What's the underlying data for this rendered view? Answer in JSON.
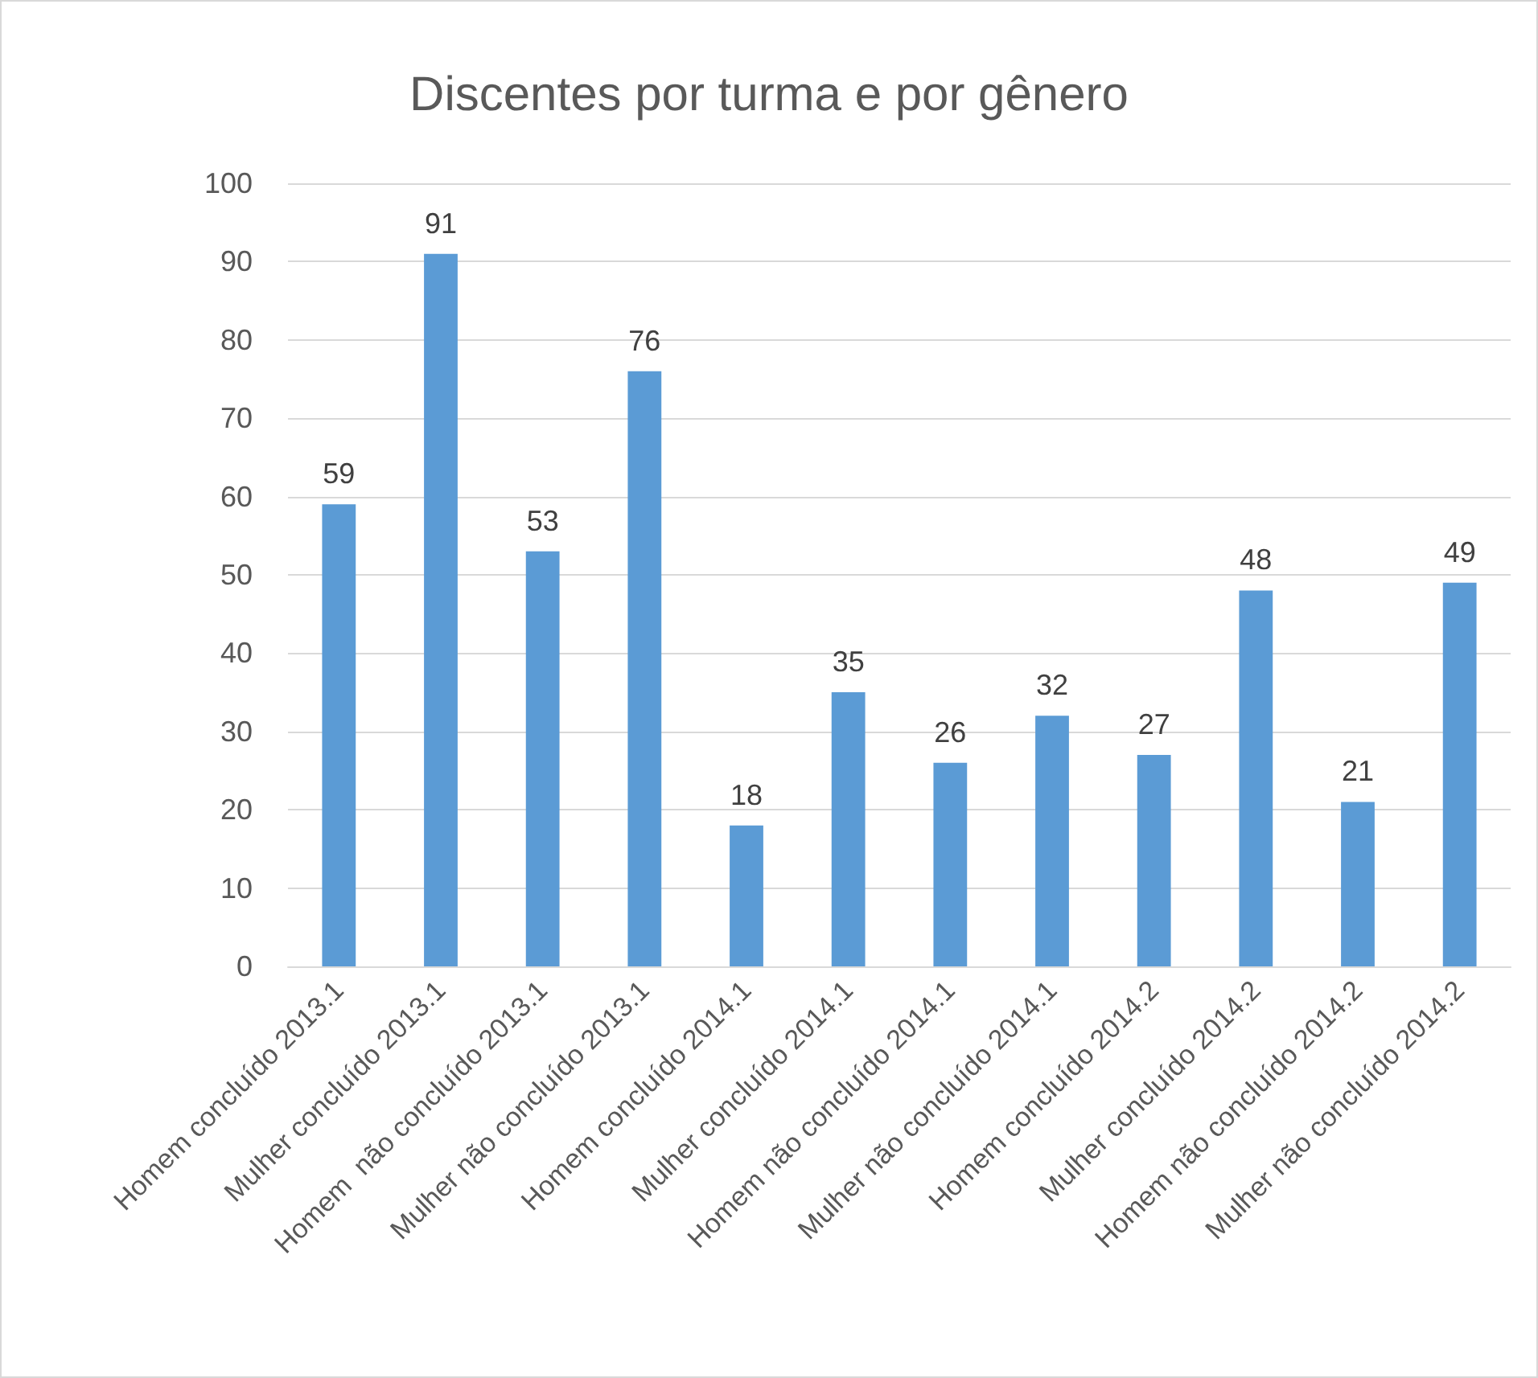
{
  "chart_data": {
    "type": "bar",
    "title": "Discentes por turma e por gênero",
    "categories": [
      "Homem concluído 2013.1",
      "Mulher concluído 2013.1",
      "Homem  não concluído 2013.1",
      "Mulher não concluído 2013.1",
      "Homem concluído 2014.1",
      "Mulher concluído 2014.1",
      "Homem não concluído 2014.1",
      "Mulher não concluído 2014.1",
      "Homem concluído 2014.2",
      "Mulher concluído 2014.2",
      "Homem não concluído 2014.2",
      "Mulher não concluído 2014.2"
    ],
    "values": [
      59,
      91,
      53,
      76,
      18,
      35,
      26,
      32,
      27,
      48,
      21,
      49
    ],
    "color": "#5b9bd5",
    "ylim": [
      0,
      100
    ],
    "yticks": [
      0,
      10,
      20,
      30,
      40,
      50,
      60,
      70,
      80,
      90,
      100
    ],
    "grid": "y",
    "data_labels": true
  }
}
